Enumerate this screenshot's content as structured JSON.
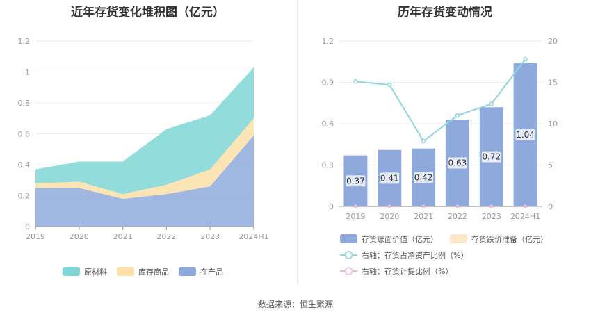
{
  "titles": {
    "left": "近年存货变化堆积图（亿元）",
    "right": "历年存货变动情况"
  },
  "source": "数据来源：恒生聚源",
  "colors": {
    "raw_material": "#7fd6d6",
    "finished_goods": "#fddfa8",
    "wip": "#8eaadc",
    "bar": "#8eaadc",
    "reserve": "#fde7c8",
    "ratio_line": "#8dd6dc",
    "provision_line": "#f2b7d9"
  },
  "chart_data": [
    {
      "type": "area",
      "stacked": true,
      "title": "近年存货变化堆积图（亿元）",
      "categories": [
        "2019",
        "2020",
        "2021",
        "2022",
        "2023",
        "2024H1"
      ],
      "ylim": [
        0,
        1.2
      ],
      "yticks": [
        "0",
        "0.2",
        "0.4",
        "0.6",
        "0.8",
        "1",
        "1.2"
      ],
      "grid": true,
      "legend_position": "bottom",
      "series": [
        {
          "name": "在产品",
          "values": [
            0.25,
            0.25,
            0.18,
            0.21,
            0.26,
            0.59
          ]
        },
        {
          "name": "库存商品",
          "values": [
            0.03,
            0.04,
            0.03,
            0.06,
            0.11,
            0.11
          ]
        },
        {
          "name": "原材料",
          "values": [
            0.09,
            0.13,
            0.21,
            0.36,
            0.35,
            0.33
          ]
        }
      ]
    },
    {
      "type": "bar",
      "title": "历年存货变动情况",
      "categories": [
        "2019",
        "2020",
        "2021",
        "2022",
        "2023",
        "2024H1"
      ],
      "ylim": [
        0,
        1.2
      ],
      "yticks": [
        "0",
        "0.3",
        "0.6",
        "0.9",
        "1.2"
      ],
      "y2lim": [
        0,
        20
      ],
      "y2ticks": [
        "0",
        "5",
        "10",
        "15",
        "20"
      ],
      "grid": true,
      "legend_position": "bottom",
      "series": [
        {
          "name": "存货账面价值（亿元）",
          "type": "bar",
          "axis": "left",
          "values": [
            0.37,
            0.41,
            0.42,
            0.63,
            0.72,
            1.04
          ],
          "labels": [
            "0.37",
            "0.41",
            "0.42",
            "0.63",
            "0.72",
            "1.04"
          ]
        },
        {
          "name": "存货跌价准备（亿元）",
          "type": "bar",
          "axis": "left",
          "values": [
            0,
            0,
            0,
            0,
            0,
            0
          ]
        },
        {
          "name": "右轴：存货占净资产比例（%）",
          "type": "line",
          "axis": "right",
          "values": [
            15.1,
            14.7,
            7.9,
            11.0,
            12.4,
            17.8
          ]
        },
        {
          "name": "右轴：存货计提比例（%）",
          "type": "line",
          "axis": "right",
          "values": [
            0,
            0,
            0,
            0,
            0,
            0
          ]
        }
      ]
    }
  ]
}
